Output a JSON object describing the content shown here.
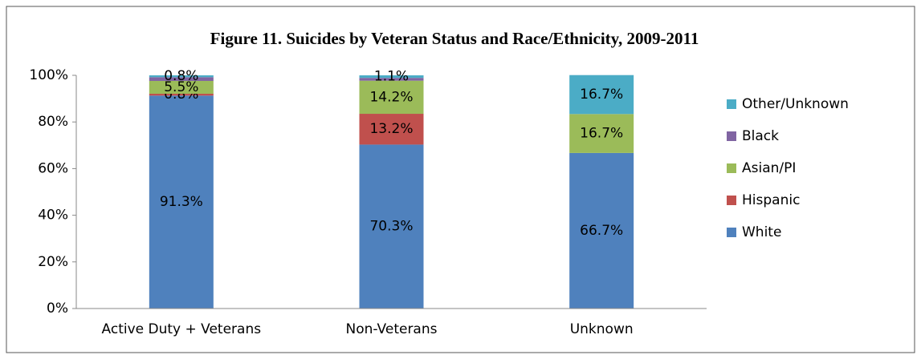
{
  "chart_data": {
    "type": "stacked_bar",
    "title": "Figure 11. Suicides by Veteran Status and Race/Ethnicity, 2009-2011",
    "categories": [
      "Active Duty + Veterans",
      "Non-Veterans",
      "Unknown"
    ],
    "series": [
      {
        "name": "White",
        "color": "#4f81bd",
        "values": [
          91.3,
          70.3,
          66.7
        ],
        "value_labels": [
          "91.3%",
          "70.3%",
          "66.7%"
        ]
      },
      {
        "name": "Hispanic",
        "color": "#c0504d",
        "values": [
          0.8,
          13.2,
          0
        ],
        "value_labels": [
          "0.8%",
          "13.2%",
          null
        ]
      },
      {
        "name": "Asian/PI",
        "color": "#9bbb59",
        "values": [
          5.5,
          14.2,
          16.7
        ],
        "value_labels": [
          "5.5%",
          "14.2%",
          "16.7%"
        ]
      },
      {
        "name": "Black",
        "color": "#8064a2",
        "values": [
          1.6,
          1.2,
          0
        ],
        "value_labels": [
          null,
          null,
          null
        ]
      },
      {
        "name": "Other/Unknown",
        "color": "#4bacc6",
        "values": [
          0.8,
          1.1,
          16.7
        ],
        "value_labels": [
          "0.8%",
          "1.1%",
          "16.7%"
        ]
      }
    ],
    "ylim": [
      0,
      100
    ],
    "yticks": [
      {
        "value": 0,
        "label": "0%"
      },
      {
        "value": 20,
        "label": "20%"
      },
      {
        "value": 40,
        "label": "40%"
      },
      {
        "value": 60,
        "label": "60%"
      },
      {
        "value": 80,
        "label": "80%"
      },
      {
        "value": 100,
        "label": "100%"
      }
    ],
    "legend": "right"
  }
}
